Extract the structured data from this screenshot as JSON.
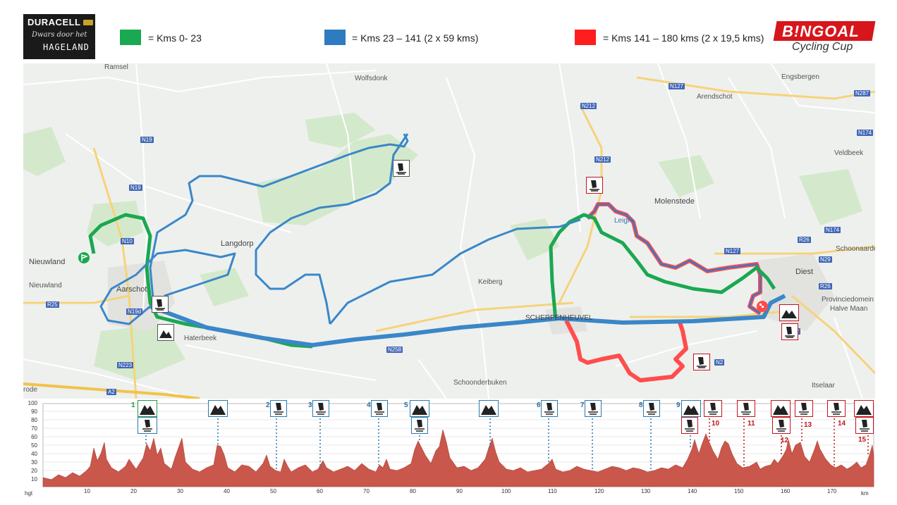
{
  "header": {
    "duracell_logo": {
      "brand": "DURACELL",
      "line1": "Dwars door het",
      "line2": "HAGELAND"
    },
    "legend": [
      {
        "color": "#1aa851",
        "label": "= Kms 0- 23"
      },
      {
        "color": "#2f7bbf",
        "label": "= Kms 23 – 141 (2 x 59 kms)"
      },
      {
        "color": "#ff1e1e",
        "label": "= Kms 141 – 180 kms (2 x 19,5 kms)"
      }
    ],
    "bingoal_logo": {
      "name": "B!NGOAL",
      "sub": "Cycling Cup"
    }
  },
  "map": {
    "places": {
      "ramsel": "Ramsel",
      "wolfsdonk": "Wolfsdonk",
      "engsbergen": "Engsbergen",
      "arendschot": "Arendschot",
      "veldbeek": "Veldbeek",
      "langdorp": "Langdorp",
      "molenstede": "Molenstede",
      "leigracht": "Leigra",
      "nieuwland1": "Nieuwland",
      "nieuwland2": "Nieuwland",
      "aarschot": "Aarschot",
      "keiberg": "Keiberg",
      "diest": "Diest",
      "schoonaarde": "Schoonaarde",
      "provinciedomein": "Provinciedomein",
      "halvemaan": "Halve Maan",
      "haterbeek": "Haterbeek",
      "scherpenheuvel": "SCHERPENHEUVEL",
      "schoonderbuken": "Schoonderbuken",
      "itselaar": "Itselaar",
      "rode": "rode"
    },
    "roads": [
      "N19",
      "N19",
      "N10",
      "N19d",
      "N223",
      "R25",
      "N212",
      "N212",
      "N127",
      "N287",
      "N174",
      "N174",
      "N127",
      "R26",
      "N29",
      "R26",
      "N2",
      "N2",
      "N258",
      "A2"
    ]
  },
  "profile": {
    "y_ticks": [
      "100",
      "90",
      "80",
      "70",
      "60",
      "50",
      "40",
      "30",
      "20",
      "10"
    ],
    "x_ticks": [
      "10",
      "20",
      "30",
      "40",
      "50",
      "60",
      "70",
      "80",
      "90",
      "100",
      "110",
      "120",
      "130",
      "140",
      "150",
      "160",
      "170"
    ],
    "hgt_label": "hgt",
    "km_label": "km",
    "checkpoints": [
      {
        "num": "1",
        "km": 22.5,
        "type": "hill+cobble",
        "color": "green"
      },
      {
        "num": "",
        "km": 38,
        "type": "hill",
        "color": "blue"
      },
      {
        "num": "2",
        "km": 51,
        "type": "cobble",
        "color": "blue"
      },
      {
        "num": "3",
        "km": 60.5,
        "type": "cobble",
        "color": "blue"
      },
      {
        "num": "4",
        "km": 73,
        "type": "cobble",
        "color": "blue"
      },
      {
        "num": "5",
        "km": 81.5,
        "type": "hill+cobble",
        "color": "blue"
      },
      {
        "num": "",
        "km": 97,
        "type": "hill",
        "color": "blue"
      },
      {
        "num": "6",
        "km": 110,
        "type": "cobble",
        "color": "blue"
      },
      {
        "num": "7",
        "km": 119.5,
        "type": "cobble",
        "color": "blue"
      },
      {
        "num": "8",
        "km": 132,
        "type": "cobble",
        "color": "blue"
      },
      {
        "num": "9",
        "km": 140.5,
        "type": "hill+cobble",
        "color": "blue"
      },
      {
        "num": "10",
        "km": 145,
        "type": "cobble",
        "color": "red"
      },
      {
        "num": "11",
        "km": 153,
        "type": "cobble",
        "color": "red"
      },
      {
        "num": "12",
        "km": 160,
        "type": "hill+cobble",
        "color": "red"
      },
      {
        "num": "13",
        "km": 165,
        "type": "cobble",
        "color": "red"
      },
      {
        "num": "14",
        "km": 172.5,
        "type": "cobble",
        "color": "red"
      },
      {
        "num": "15",
        "km": 179,
        "type": "hill+cobble",
        "color": "red"
      }
    ]
  }
}
